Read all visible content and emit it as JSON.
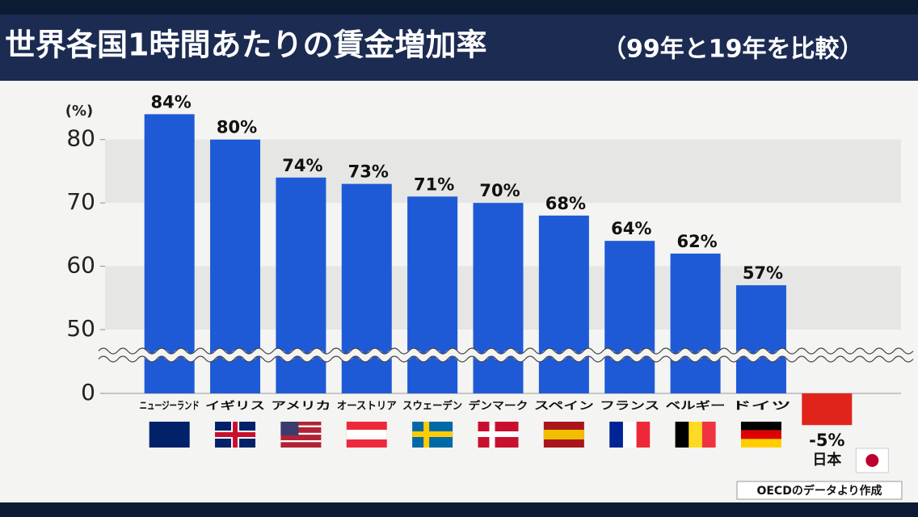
{
  "chart_data": {
    "type": "bar",
    "title": "世界各国1時間あたりの賃金増加率",
    "subtitle": "（99年と19年を比較）",
    "y_label": "(%)",
    "source": "OECDのデータより作成",
    "categories": [
      "ニュージーランド",
      "イギリス",
      "アメリカ",
      "オーストリア",
      "スウェーデン",
      "デンマーク",
      "スペイン",
      "フランス",
      "ベルギー",
      "ドイツ",
      "日本"
    ],
    "values": [
      84,
      80,
      74,
      73,
      71,
      70,
      68,
      64,
      62,
      57,
      -5
    ],
    "value_labels": [
      "84%",
      "80%",
      "74%",
      "73%",
      "71%",
      "70%",
      "68%",
      "64%",
      "62%",
      "57%",
      "-5%"
    ],
    "colors": [
      "#1f5ad6",
      "#1f5ad6",
      "#1f5ad6",
      "#1f5ad6",
      "#1f5ad6",
      "#1f5ad6",
      "#1f5ad6",
      "#1f5ad6",
      "#1f5ad6",
      "#1f5ad6",
      "#e0241b"
    ],
    "ylim": [
      0,
      88
    ],
    "yticks": [
      0,
      50,
      60,
      70,
      80
    ],
    "axis_break": true,
    "grid": true
  }
}
